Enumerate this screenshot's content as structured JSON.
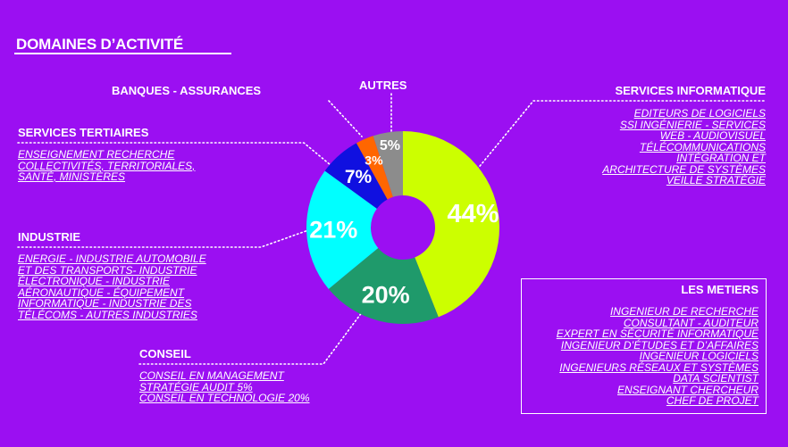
{
  "page": {
    "title": "DOMAINES D’ACTIVITÉ"
  },
  "colors": {
    "background": "#9b0ff2",
    "text": "#ffffff",
    "leader": "#ffffff"
  },
  "chart_data": {
    "type": "pie",
    "variant": "donut",
    "title": "DOMAINES D’ACTIVITÉ",
    "categories": [
      "SERVICES INFORMATIQUE",
      "CONSEIL",
      "INDUSTRIE",
      "SERVICES TERTIAIRES",
      "BANQUES - ASSURANCES",
      "AUTRES"
    ],
    "values": [
      44,
      20,
      21,
      7,
      3,
      5
    ],
    "labels": [
      "44%",
      "20%",
      "21%",
      "7%",
      "3%",
      "5%"
    ],
    "colors": [
      "#ccff00",
      "#1f9a6b",
      "#00ffff",
      "#1010e0",
      "#ff6600",
      "#8c8c8c"
    ],
    "label_colors": [
      "#ffffff",
      "#ffffff",
      "#ffffff",
      "#ffffff",
      "#ffffff",
      "#ffffff"
    ],
    "start": "top",
    "direction": "clockwise",
    "legend": "none"
  },
  "categories": {
    "services_informatique": {
      "title": "SERVICES INFORMATIQUE",
      "items": [
        "EDITEURS DE LOGICIELS",
        "SSI INGÉNIERIE - SERVICES",
        "WEB - AUDIOVISUEL",
        "TÉLÉCOMMUNICATIONS",
        "INTÉGRATION ET",
        "ARCHITECTURE DE SYSTÈMES",
        "VEILLE STRATÉGIE"
      ]
    },
    "autres": {
      "title": "AUTRES"
    },
    "banques": {
      "title": "BANQUES - ASSURANCES"
    },
    "services_tertiaires": {
      "title": "SERVICES TERTIAIRES",
      "items": [
        "ENSEIGNEMENT RECHERCHE",
        "COLLECTIVITÉS, TERRITORIALES,",
        "SANTÉ, MINISTÈRES"
      ]
    },
    "industrie": {
      "title": "INDUSTRIE",
      "items": [
        "ENERGIE - INDUSTRIE AUTOMOBILE",
        "ET DES TRANSPORTS- INDUSTRIE",
        "ÉLECTRONIQUE - INDUSTRIE",
        "AÉRONAUTIQUE - ÉQUIPEMENT",
        "INFORMATIQUE - INDUSTRIE DES",
        "TÉLÉCOMS - AUTRES INDUSTRIES"
      ]
    },
    "conseil": {
      "title": "CONSEIL",
      "items": [
        "CONSEIL EN MANAGEMENT",
        "STRATÉGIE AUDIT 5%",
        "CONSEIL EN TECHNOLOGIE 20%"
      ]
    }
  },
  "metiers": {
    "title": "LES METIERS",
    "items": [
      "INGENIEUR DE RECHERCHE",
      "CONSULTANT  - AUDITEUR",
      "EXPERT EN SÉCURITÉ INFORMATIQUE",
      "INGENIEUR D’ÉTUDES ET D’AFFAIRES",
      "INGENIEUR LOGICIELS",
      "INGENIEURS RÉSEAUX ET SYSTÈMES",
      "DATA SCIENTIST",
      "ENSEIGNANT CHERCHEUR",
      "CHEF DE PROJET"
    ]
  }
}
